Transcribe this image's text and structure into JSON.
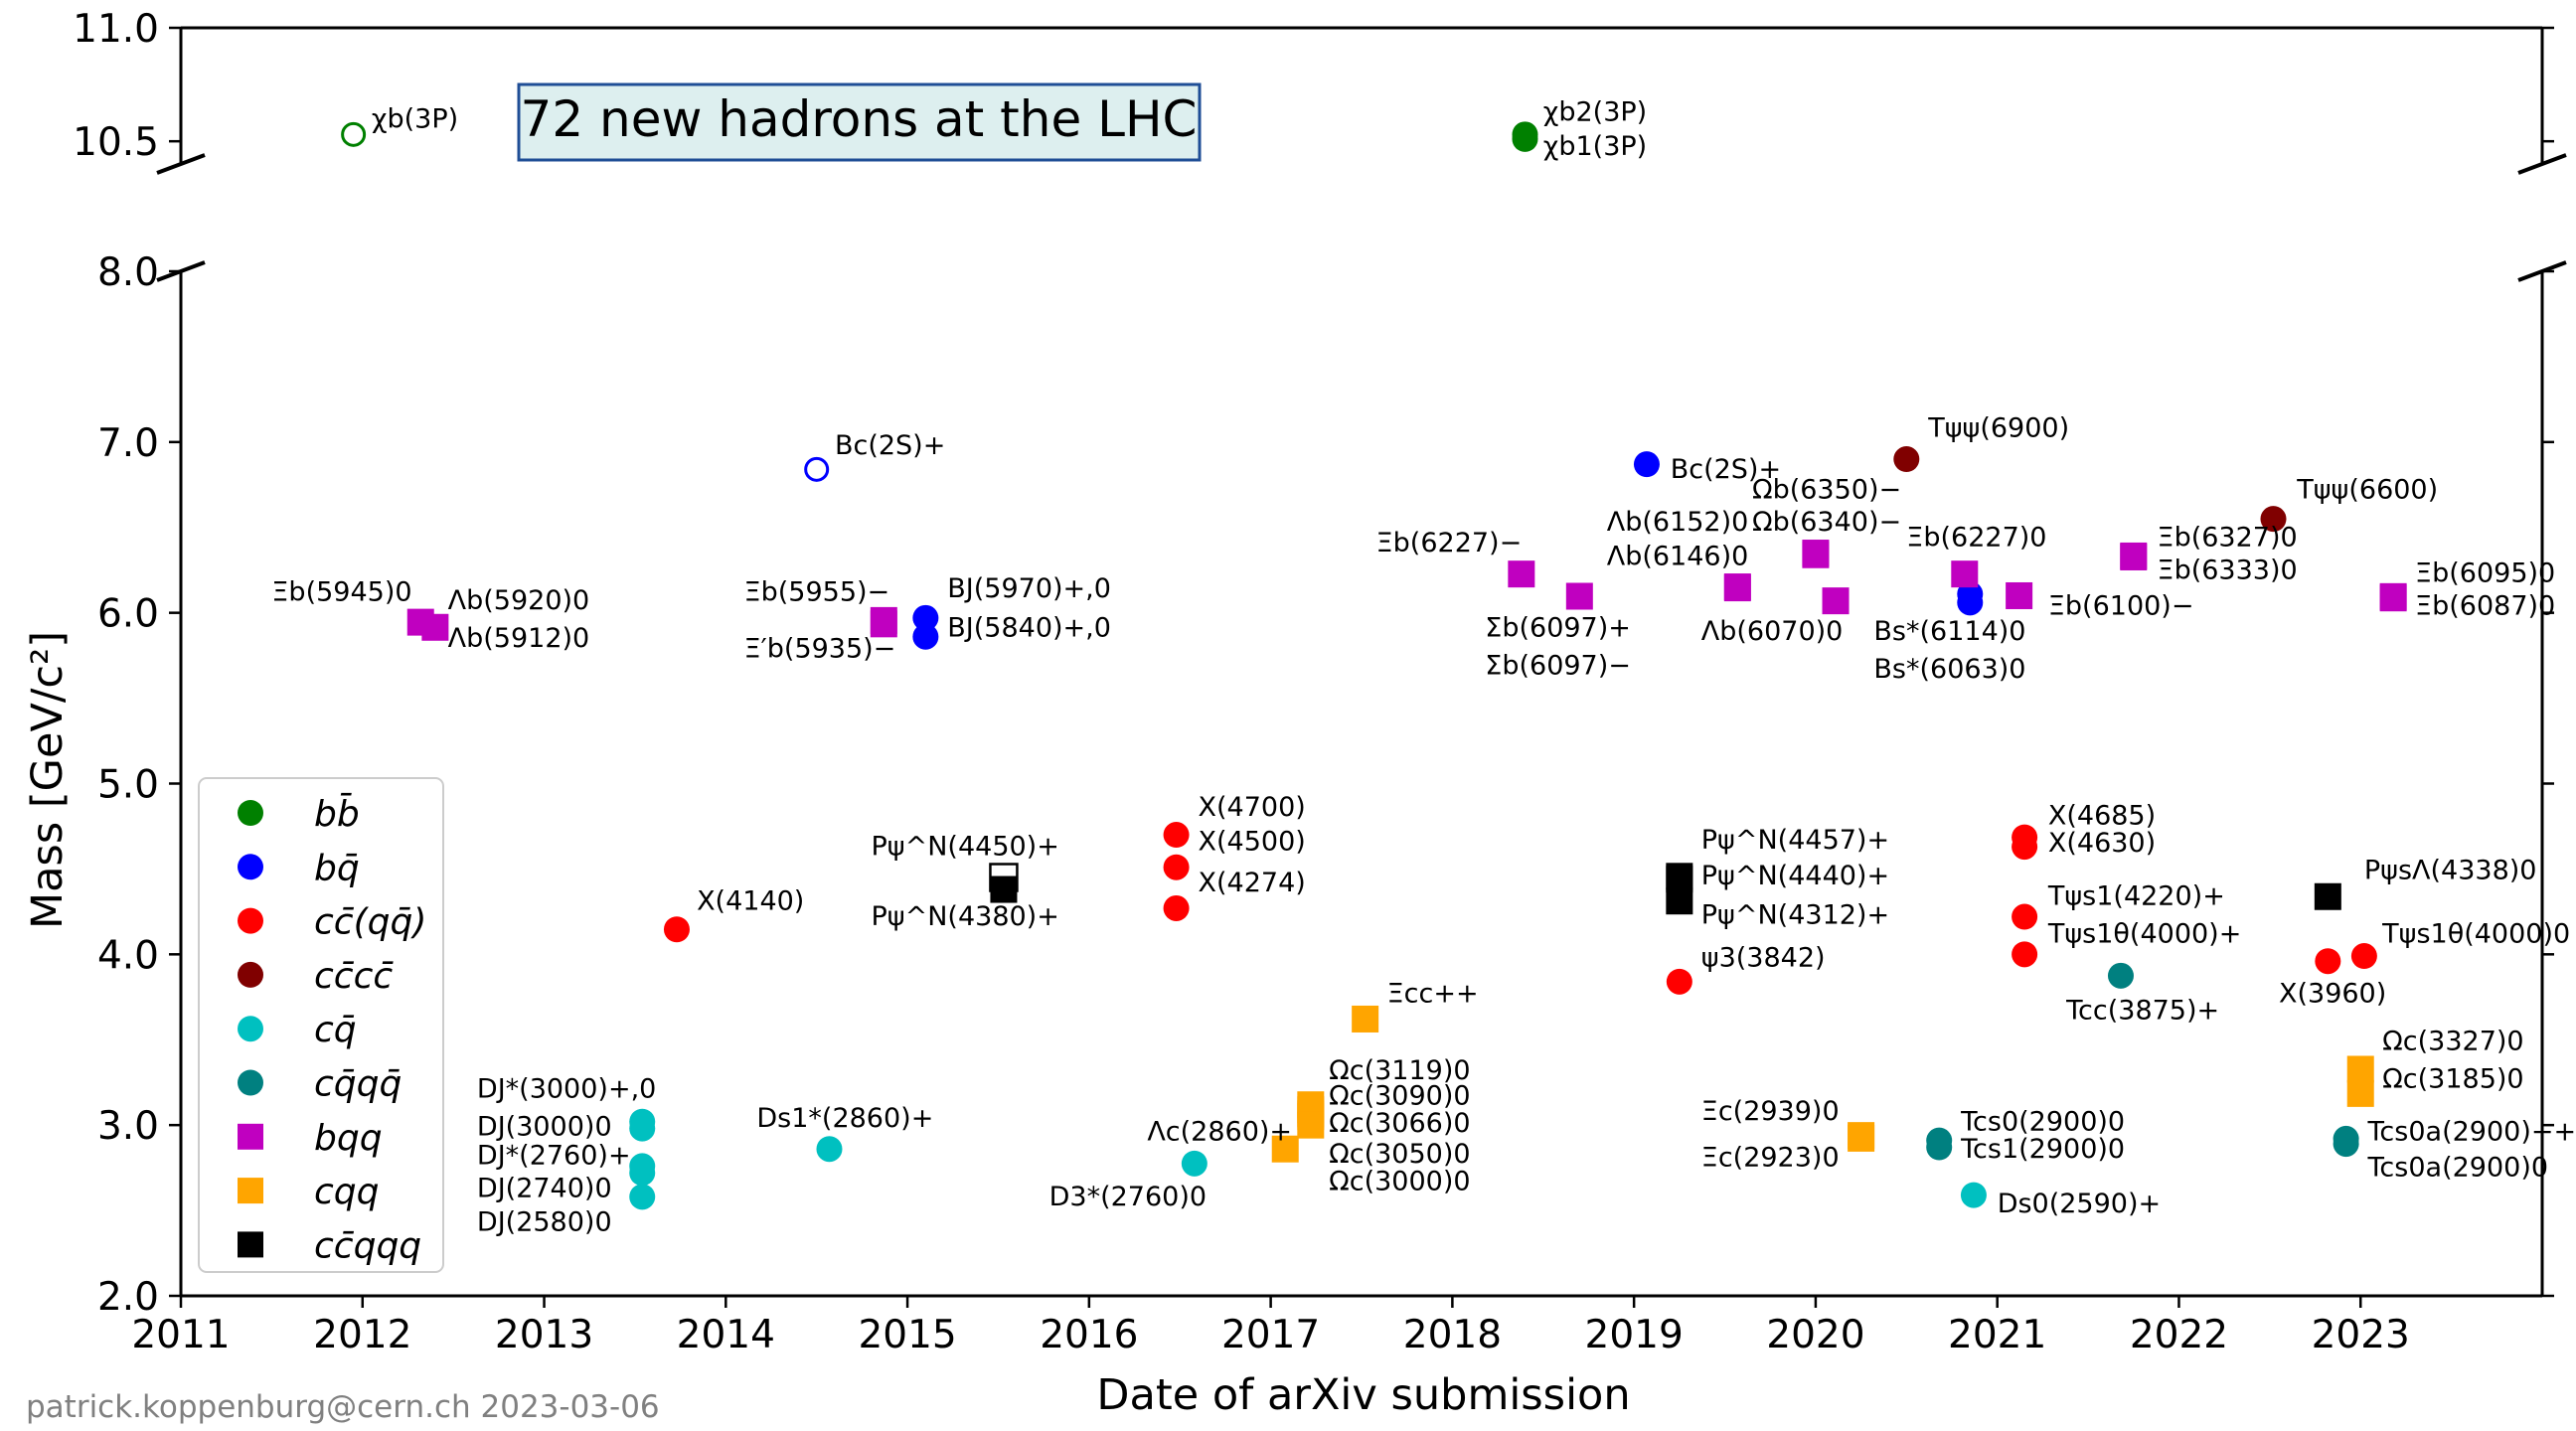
{
  "chart_data": {
    "type": "scatter",
    "title": "72 new hadrons at the LHC",
    "xlabel": "Date of arXiv submission",
    "ylabel": "Mass [GeV/c²]",
    "xlim": [
      2011,
      2024
    ],
    "ylim_lower": [
      2.0,
      8.0
    ],
    "ylim_upper": [
      10.4,
      11.0
    ],
    "x_ticks": [
      "2011",
      "2012",
      "2013",
      "2014",
      "2015",
      "2016",
      "2017",
      "2018",
      "2019",
      "2020",
      "2021",
      "2022",
      "2023"
    ],
    "y_ticks_lower": [
      "2.0",
      "3.0",
      "4.0",
      "5.0",
      "6.0",
      "7.0",
      "8.0"
    ],
    "y_ticks_upper": [
      "10.5",
      "11.0"
    ],
    "credit": "patrick.koppenburg@cern.ch 2023-03-06",
    "legend_position": "lower-left",
    "categories": [
      {
        "key": "bb",
        "label": "bb̄",
        "marker": "circle",
        "color": "#008000"
      },
      {
        "key": "bq",
        "label": "bq̄",
        "marker": "circle",
        "color": "#0000ff"
      },
      {
        "key": "cc_qq",
        "label": "cc̄(qq̄)",
        "marker": "circle",
        "color": "#ff0000"
      },
      {
        "key": "cccc",
        "label": "cc̄cc̄",
        "marker": "circle",
        "color": "#800000"
      },
      {
        "key": "cq",
        "label": "cq̄",
        "marker": "circle",
        "color": "#00c0c0"
      },
      {
        "key": "cqqq",
        "label": "cq̄qq̄",
        "marker": "circle",
        "color": "#008080"
      },
      {
        "key": "bqq",
        "label": "bqq",
        "marker": "square",
        "color": "#c000c0"
      },
      {
        "key": "cqq",
        "label": "cqq",
        "marker": "square",
        "color": "#ffa500"
      },
      {
        "key": "ccqqq",
        "label": "cc̄qqq",
        "marker": "square",
        "color": "#000000"
      }
    ],
    "points": [
      {
        "x": 2011.95,
        "y": 10.53,
        "cat": "bb",
        "open": true
      },
      {
        "x": 2018.4,
        "y": 10.51,
        "cat": "bb"
      },
      {
        "x": 2018.4,
        "y": 10.53,
        "cat": "bb"
      },
      {
        "x": 2014.5,
        "y": 6.84,
        "cat": "bq",
        "open": true
      },
      {
        "x": 2015.1,
        "y": 5.97,
        "cat": "bq"
      },
      {
        "x": 2015.1,
        "y": 5.86,
        "cat": "bq"
      },
      {
        "x": 2019.07,
        "y": 6.87,
        "cat": "bq"
      },
      {
        "x": 2020.85,
        "y": 6.11,
        "cat": "bq"
      },
      {
        "x": 2020.85,
        "y": 6.06,
        "cat": "bq"
      },
      {
        "x": 2013.73,
        "y": 4.146,
        "cat": "cc_qq"
      },
      {
        "x": 2016.48,
        "y": 4.7,
        "cat": "cc_qq"
      },
      {
        "x": 2016.48,
        "y": 4.51,
        "cat": "cc_qq"
      },
      {
        "x": 2016.48,
        "y": 4.27,
        "cat": "cc_qq"
      },
      {
        "x": 2019.25,
        "y": 3.84,
        "cat": "cc_qq"
      },
      {
        "x": 2021.15,
        "y": 4.685,
        "cat": "cc_qq"
      },
      {
        "x": 2021.15,
        "y": 4.63,
        "cat": "cc_qq"
      },
      {
        "x": 2021.15,
        "y": 4.22,
        "cat": "cc_qq"
      },
      {
        "x": 2021.15,
        "y": 4.0,
        "cat": "cc_qq"
      },
      {
        "x": 2022.82,
        "y": 3.96,
        "cat": "cc_qq"
      },
      {
        "x": 2023.02,
        "y": 3.99,
        "cat": "cc_qq"
      },
      {
        "x": 2020.5,
        "y": 6.9,
        "cat": "cccc"
      },
      {
        "x": 2022.52,
        "y": 6.55,
        "cat": "cccc"
      },
      {
        "x": 2013.54,
        "y": 3.02,
        "cat": "cq"
      },
      {
        "x": 2013.54,
        "y": 2.98,
        "cat": "cq"
      },
      {
        "x": 2013.54,
        "y": 2.76,
        "cat": "cq"
      },
      {
        "x": 2013.54,
        "y": 2.72,
        "cat": "cq"
      },
      {
        "x": 2013.54,
        "y": 2.58,
        "cat": "cq"
      },
      {
        "x": 2014.57,
        "y": 2.86,
        "cat": "cq"
      },
      {
        "x": 2016.58,
        "y": 2.775,
        "cat": "cq"
      },
      {
        "x": 2020.87,
        "y": 2.59,
        "cat": "cq"
      },
      {
        "x": 2020.68,
        "y": 2.91,
        "cat": "cqqq"
      },
      {
        "x": 2020.68,
        "y": 2.87,
        "cat": "cqqq"
      },
      {
        "x": 2021.68,
        "y": 3.875,
        "cat": "cqqq"
      },
      {
        "x": 2022.92,
        "y": 2.92,
        "cat": "cqqq"
      },
      {
        "x": 2022.92,
        "y": 2.89,
        "cat": "cqqq"
      },
      {
        "x": 2012.32,
        "y": 5.945,
        "cat": "bqq"
      },
      {
        "x": 2012.4,
        "y": 5.915,
        "cat": "bqq"
      },
      {
        "x": 2014.87,
        "y": 5.955,
        "cat": "bqq"
      },
      {
        "x": 2014.87,
        "y": 5.935,
        "cat": "bqq"
      },
      {
        "x": 2018.38,
        "y": 6.227,
        "cat": "bqq"
      },
      {
        "x": 2018.7,
        "y": 6.097,
        "cat": "bqq"
      },
      {
        "x": 2019.57,
        "y": 6.152,
        "cat": "bqq"
      },
      {
        "x": 2019.57,
        "y": 6.146,
        "cat": "bqq"
      },
      {
        "x": 2020.0,
        "y": 6.35,
        "cat": "bqq"
      },
      {
        "x": 2020.0,
        "y": 6.34,
        "cat": "bqq"
      },
      {
        "x": 2020.11,
        "y": 6.07,
        "cat": "bqq"
      },
      {
        "x": 2020.82,
        "y": 6.227,
        "cat": "bqq"
      },
      {
        "x": 2021.12,
        "y": 6.1,
        "cat": "bqq"
      },
      {
        "x": 2021.75,
        "y": 6.327,
        "cat": "bqq"
      },
      {
        "x": 2021.75,
        "y": 6.333,
        "cat": "bqq"
      },
      {
        "x": 2023.18,
        "y": 6.095,
        "cat": "bqq"
      },
      {
        "x": 2023.18,
        "y": 6.087,
        "cat": "bqq"
      },
      {
        "x": 2017.52,
        "y": 3.621,
        "cat": "cqq"
      },
      {
        "x": 2017.22,
        "y": 3.119,
        "cat": "cqq"
      },
      {
        "x": 2017.22,
        "y": 3.09,
        "cat": "cqq"
      },
      {
        "x": 2017.22,
        "y": 3.066,
        "cat": "cqq"
      },
      {
        "x": 2017.22,
        "y": 3.05,
        "cat": "cqq"
      },
      {
        "x": 2017.22,
        "y": 3.0,
        "cat": "cqq"
      },
      {
        "x": 2017.08,
        "y": 2.86,
        "cat": "cqq"
      },
      {
        "x": 2020.25,
        "y": 2.939,
        "cat": "cqq"
      },
      {
        "x": 2020.25,
        "y": 2.923,
        "cat": "cqq"
      },
      {
        "x": 2023.0,
        "y": 3.327,
        "cat": "cqq"
      },
      {
        "x": 2023.0,
        "y": 3.185,
        "cat": "cqq"
      },
      {
        "x": 2015.53,
        "y": 4.45,
        "cat": "ccqqq",
        "half": true
      },
      {
        "x": 2015.53,
        "y": 4.38,
        "cat": "ccqqq"
      },
      {
        "x": 2019.25,
        "y": 4.457,
        "cat": "ccqqq"
      },
      {
        "x": 2019.25,
        "y": 4.44,
        "cat": "ccqqq"
      },
      {
        "x": 2019.25,
        "y": 4.312,
        "cat": "ccqqq"
      },
      {
        "x": 2022.82,
        "y": 4.338,
        "cat": "ccqqq"
      }
    ],
    "annotations": [
      {
        "text": "χb(3P)",
        "x": 2012.05,
        "y": 10.56
      },
      {
        "text": "χb2(3P)",
        "x": 2018.5,
        "y": 10.59
      },
      {
        "text": "χb1(3P)",
        "x": 2018.5,
        "y": 10.44
      },
      {
        "text": "Bc(2S)+",
        "x": 2014.6,
        "y": 6.93
      },
      {
        "text": "Bc(2S)+",
        "x": 2019.2,
        "y": 6.79
      },
      {
        "text": "Tψψ(6900)",
        "x": 2020.62,
        "y": 7.03
      },
      {
        "text": "Tψψ(6600)",
        "x": 2022.65,
        "y": 6.67
      },
      {
        "text": "Ξb(6227)−",
        "x": 2017.58,
        "y": 6.36
      },
      {
        "text": "Ξb(5945)0",
        "x": 2011.5,
        "y": 6.07
      },
      {
        "text": "Λb(5920)0",
        "x": 2012.47,
        "y": 6.02
      },
      {
        "text": "Λb(5912)0",
        "x": 2012.47,
        "y": 5.8
      },
      {
        "text": "Ξb(5955)−",
        "x": 2014.1,
        "y": 6.07
      },
      {
        "text": "Ξ′b(5935)−",
        "x": 2014.1,
        "y": 5.74
      },
      {
        "text": "BJ(5970)+,0",
        "x": 2015.22,
        "y": 6.09
      },
      {
        "text": "BJ(5840)+,0",
        "x": 2015.22,
        "y": 5.86
      },
      {
        "text": "Σb(6097)+",
        "x": 2018.18,
        "y": 5.86
      },
      {
        "text": "Σb(6097)−",
        "x": 2018.18,
        "y": 5.64
      },
      {
        "text": "Λb(6152)0",
        "x": 2018.85,
        "y": 6.48
      },
      {
        "text": "Λb(6146)0",
        "x": 2018.85,
        "y": 6.28
      },
      {
        "text": "Ωb(6350)−",
        "x": 2019.65,
        "y": 6.67
      },
      {
        "text": "Ωb(6340)−",
        "x": 2019.65,
        "y": 6.48
      },
      {
        "text": "Λb(6070)0",
        "x": 2019.37,
        "y": 5.84
      },
      {
        "text": "Ξb(6227)0",
        "x": 2020.5,
        "y": 6.39
      },
      {
        "text": "Bs*(6114)0",
        "x": 2020.32,
        "y": 5.84
      },
      {
        "text": "Bs*(6063)0",
        "x": 2020.32,
        "y": 5.62
      },
      {
        "text": "Ξb(6100)−",
        "x": 2021.28,
        "y": 5.99
      },
      {
        "text": "Ξb(6327)0",
        "x": 2021.88,
        "y": 6.39
      },
      {
        "text": "Ξb(6333)0",
        "x": 2021.88,
        "y": 6.2
      },
      {
        "text": "Ξb(6095)0",
        "x": 2023.3,
        "y": 6.18
      },
      {
        "text": "Ξb(6087)0",
        "x": 2023.3,
        "y": 5.99
      },
      {
        "text": "X(4140)",
        "x": 2013.84,
        "y": 4.26
      },
      {
        "text": "X(4700)",
        "x": 2016.6,
        "y": 4.81
      },
      {
        "text": "X(4500)",
        "x": 2016.6,
        "y": 4.61
      },
      {
        "text": "X(4274)",
        "x": 2016.6,
        "y": 4.37
      },
      {
        "text": "Pψ^N(4450)+",
        "x": 2014.8,
        "y": 4.58
      },
      {
        "text": "Pψ^N(4380)+",
        "x": 2014.8,
        "y": 4.17
      },
      {
        "text": "Pψ^N(4457)+",
        "x": 2019.37,
        "y": 4.62
      },
      {
        "text": "Pψ^N(4440)+",
        "x": 2019.37,
        "y": 4.41
      },
      {
        "text": "Pψ^N(4312)+",
        "x": 2019.37,
        "y": 4.18
      },
      {
        "text": "ψ3(3842)",
        "x": 2019.37,
        "y": 3.93
      },
      {
        "text": "X(4685)",
        "x": 2021.28,
        "y": 4.76
      },
      {
        "text": "X(4630)",
        "x": 2021.28,
        "y": 4.6
      },
      {
        "text": "Tψs1(4220)+",
        "x": 2021.28,
        "y": 4.29
      },
      {
        "text": "Tψs1θ(4000)+",
        "x": 2021.28,
        "y": 4.07
      },
      {
        "text": "Tcc(3875)+",
        "x": 2021.38,
        "y": 3.62
      },
      {
        "text": "X(3960)",
        "x": 2022.55,
        "y": 3.72
      },
      {
        "text": "Tψs1θ(4000)0",
        "x": 2023.12,
        "y": 4.07
      },
      {
        "text": "PψsΛ(4338)0",
        "x": 2023.02,
        "y": 4.44
      },
      {
        "text": "Ξcc++",
        "x": 2017.64,
        "y": 3.72
      },
      {
        "text": "Ωc(3119)0",
        "x": 2017.32,
        "y": 3.27
      },
      {
        "text": "Ωc(3090)0",
        "x": 2017.32,
        "y": 3.12
      },
      {
        "text": "Ωc(3066)0",
        "x": 2017.32,
        "y": 2.96
      },
      {
        "text": "Ωc(3050)0",
        "x": 2017.32,
        "y": 2.78
      },
      {
        "text": "Ωc(3000)0",
        "x": 2017.32,
        "y": 2.62
      },
      {
        "text": "Λc(2860)+",
        "x": 2016.32,
        "y": 2.91
      },
      {
        "text": "D3*(2760)0",
        "x": 2015.78,
        "y": 2.53
      },
      {
        "text": "Ds1*(2860)+",
        "x": 2014.17,
        "y": 2.99
      },
      {
        "text": "DJ*(3000)+,0",
        "x": 2012.63,
        "y": 3.16
      },
      {
        "text": "DJ(3000)0",
        "x": 2012.63,
        "y": 2.94
      },
      {
        "text": "DJ*(2760)+",
        "x": 2012.63,
        "y": 2.77
      },
      {
        "text": "DJ(2740)0",
        "x": 2012.63,
        "y": 2.58
      },
      {
        "text": "DJ(2580)0",
        "x": 2012.63,
        "y": 2.38
      },
      {
        "text": "Ξc(2939)0",
        "x": 2019.37,
        "y": 3.03
      },
      {
        "text": "Ξc(2923)0",
        "x": 2019.37,
        "y": 2.76
      },
      {
        "text": "Tcs0(2900)0",
        "x": 2020.8,
        "y": 2.97
      },
      {
        "text": "Tcs1(2900)0",
        "x": 2020.8,
        "y": 2.81
      },
      {
        "text": "Ds0(2590)+",
        "x": 2021.0,
        "y": 2.49
      },
      {
        "text": "Ωc(3327)0",
        "x": 2023.12,
        "y": 3.44
      },
      {
        "text": "Ωc(3185)0",
        "x": 2023.12,
        "y": 3.22
      },
      {
        "text": "Tcs0a(2900)++",
        "x": 2023.04,
        "y": 2.91
      },
      {
        "text": "Tcs0a(2900)0",
        "x": 2023.04,
        "y": 2.7
      }
    ]
  }
}
